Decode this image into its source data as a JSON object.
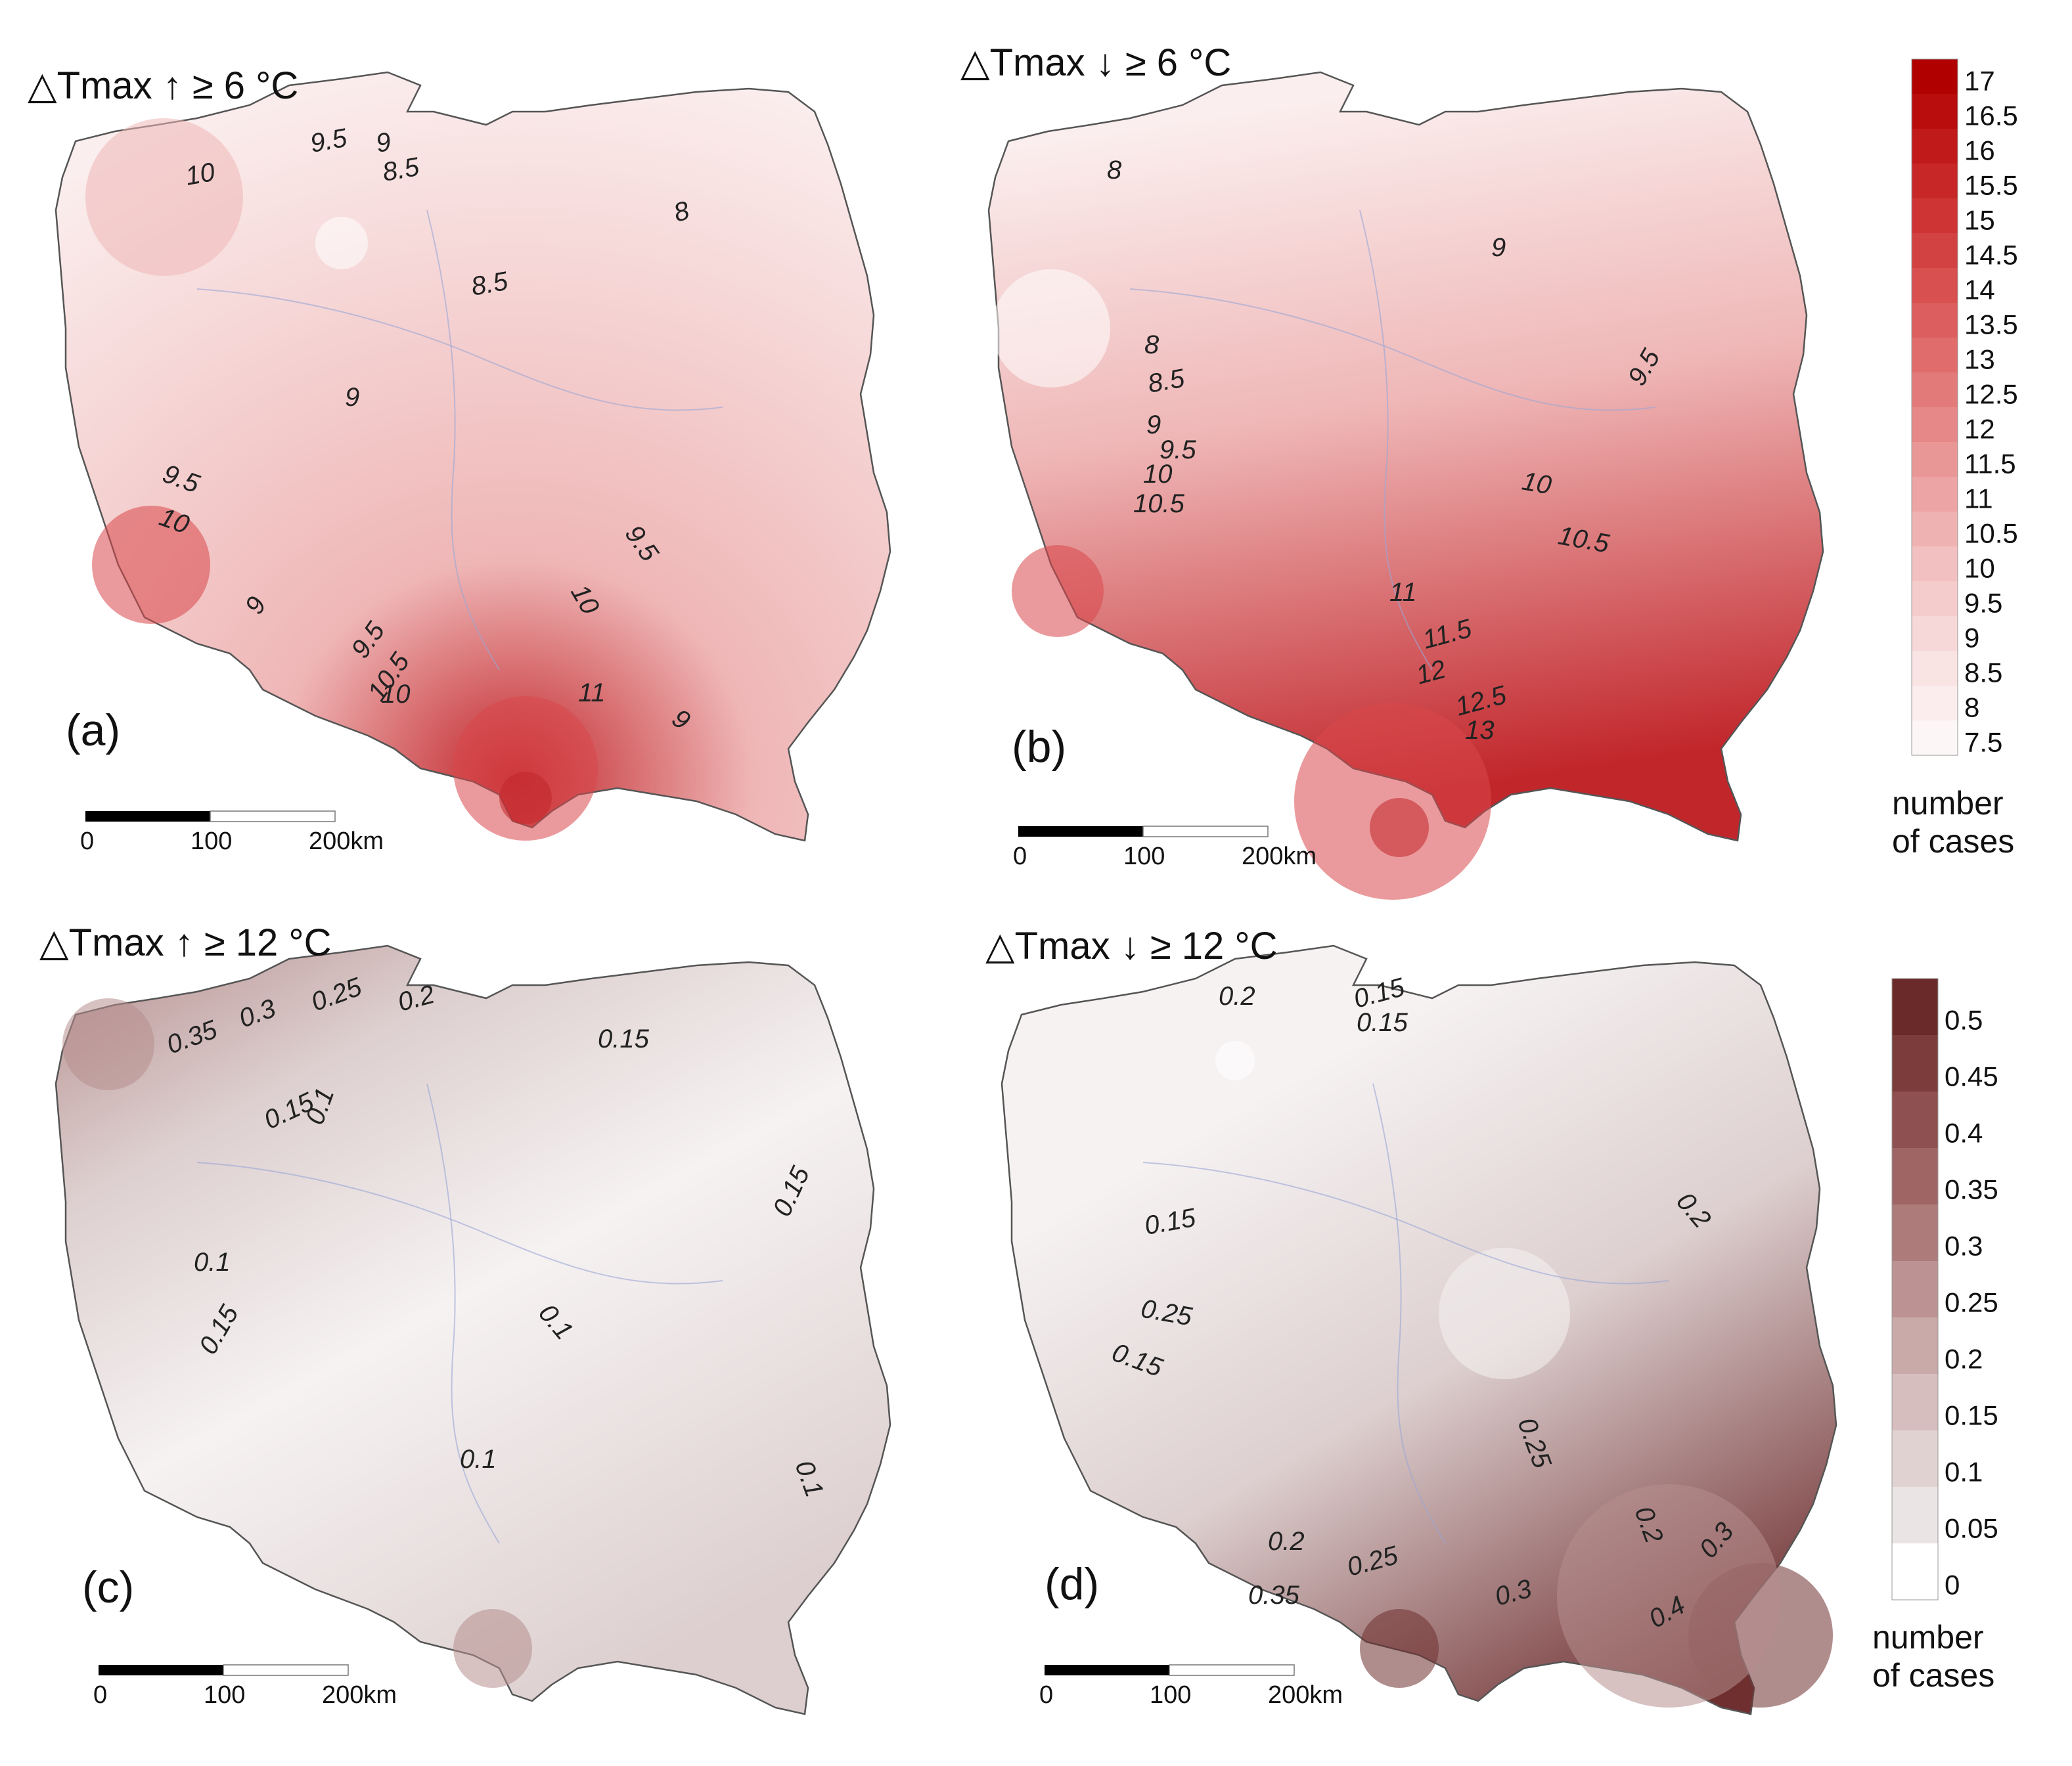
{
  "panels": [
    {
      "id": "a",
      "letter": "(a)",
      "title": "△Tmax",
      "arrow": "up",
      "threshold": "≥ 6 °C",
      "palette": "red",
      "isolines": [
        "10",
        "9.5",
        "9",
        "8.5",
        "8",
        "8.5",
        "9",
        "9.5",
        "10",
        "9",
        "9.5",
        "10",
        "10.5",
        "11",
        "10",
        "9",
        "9.5"
      ],
      "scalebar": {
        "labels": [
          "0",
          "100",
          "200km"
        ]
      }
    },
    {
      "id": "b",
      "letter": "(b)",
      "title": "△Tmax",
      "arrow": "down",
      "threshold": "≥ 6 °C",
      "palette": "red",
      "isolines": [
        "8",
        "9",
        "8",
        "8.5",
        "9",
        "9.5",
        "10",
        "10.5",
        "9.5",
        "10",
        "10.5",
        "11",
        "11.5",
        "12",
        "12.5",
        "13"
      ],
      "scalebar": {
        "labels": [
          "0",
          "100",
          "200km"
        ]
      }
    },
    {
      "id": "c",
      "letter": "(c)",
      "title": "△Tmax",
      "arrow": "up",
      "threshold": "≥ 12 °C",
      "palette": "brown",
      "isolines": [
        "0.35",
        "0.3",
        "0.25",
        "0.2",
        "0.15",
        "0.15",
        "0.1",
        "0.15",
        "0.1",
        "0.1",
        "0.15",
        "0.1",
        "0.1"
      ],
      "scalebar": {
        "labels": [
          "0",
          "100",
          "200km"
        ]
      }
    },
    {
      "id": "d",
      "letter": "(d)",
      "title": "△Tmax",
      "arrow": "down",
      "threshold": "≥ 12 °C",
      "palette": "brown",
      "isolines": [
        "0.2",
        "0.15",
        "0.15",
        "0.15",
        "0.2",
        "0.25",
        "0.15",
        "0.25",
        "0.2",
        "0.2",
        "0.25",
        "0.3",
        "0.35",
        "0.3",
        "0.4"
      ],
      "scalebar": {
        "labels": [
          "0",
          "100",
          "200km"
        ]
      }
    }
  ],
  "legend_top": {
    "ticks": [
      "17",
      "16.5",
      "16",
      "15.5",
      "15",
      "14.5",
      "14",
      "13.5",
      "13",
      "12.5",
      "12",
      "11.5",
      "11",
      "10.5",
      "10",
      "9.5",
      "9",
      "8.5",
      "8",
      "7.5"
    ],
    "colors": [
      "#b00000",
      "#b90d0d",
      "#c11a1a",
      "#c82727",
      "#ce3434",
      "#d34242",
      "#d85050",
      "#dc5e5e",
      "#e06c6c",
      "#e37a7a",
      "#e68888",
      "#e99696",
      "#eca4a4",
      "#efb2b2",
      "#f2c0c0",
      "#f5cccc",
      "#f7d8d8",
      "#f9e3e3",
      "#fbeded",
      "#fdf6f6"
    ],
    "caption": [
      "number",
      "of cases"
    ]
  },
  "legend_bottom": {
    "ticks": [
      "0.5",
      "0.45",
      "0.4",
      "0.35",
      "0.3",
      "0.25",
      "0.2",
      "0.15",
      "0.1",
      "0.05",
      "0"
    ],
    "colors": [
      "#6b2a2a",
      "#7c3c3c",
      "#8e5050",
      "#9f6565",
      "#ae7b7b",
      "#bd9292",
      "#caa9a9",
      "#d6bebe",
      "#e1d2d2",
      "#ebe4e4",
      "#ffffff"
    ],
    "caption": [
      "number",
      "of cases"
    ]
  },
  "palettes": {
    "red": {
      "light": "#fbeeee",
      "mid": "#efb6b6",
      "dark": "#d8474b",
      "darkest": "#c1262b"
    },
    "brown": {
      "light": "#f6f2f2",
      "mid": "#ddcfcf",
      "dark": "#b78e8e",
      "darkest": "#6f2f30"
    }
  }
}
